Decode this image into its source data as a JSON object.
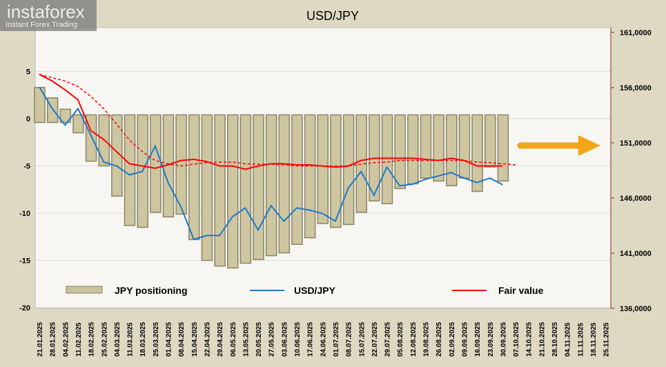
{
  "chart_data": {
    "type": "bar+line",
    "title": "USD/JPY",
    "left_axis": {
      "ticks": [
        5,
        0,
        -5,
        -10,
        -15,
        -20
      ],
      "range": [
        -20,
        5
      ]
    },
    "right_axis": {
      "ticks": [
        "161,0000",
        "156,0000",
        "151,0000",
        "146,0000",
        "141,0000",
        "136,0000"
      ],
      "range": [
        136000,
        161000
      ]
    },
    "x_labels": [
      "21.01.2025",
      "28.01.2025",
      "04.02.2025",
      "11.02.2025",
      "18.02.2025",
      "25.02.2025",
      "04.03.2025",
      "11.03.2025",
      "18.03.2025",
      "25.03.2025",
      "01.04.2025",
      "08.04.2025",
      "15.04.2025",
      "22.04.2025",
      "29.04.2025",
      "06.05.2025",
      "13.05.2025",
      "20.05.2025",
      "27.05.2025",
      "03.06.2025",
      "10.06.2025",
      "17.06.2025",
      "24.06.2025",
      "01.07.2025",
      "08.07.2025",
      "15.07.2025",
      "22.07.2025",
      "29.07.2025",
      "05.08.2025",
      "12.08.2025",
      "19.08.2025",
      "26.08.2025",
      "02.09.2025",
      "09.09.2025",
      "16.09.2025",
      "23.09.2025",
      "30.09.2025",
      "07.10.2025",
      "14.10.2025",
      "21.10.2025",
      "28.10.2025",
      "04.11.2025",
      "11.11.2025",
      "18.11.2025",
      "25.11.2025"
    ],
    "series": [
      {
        "name": "JPY positioning",
        "axis": "left",
        "kind": "bar",
        "values": [
          3.3,
          2.2,
          1.0,
          -1.5,
          -4.5,
          -5.0,
          -8.2,
          -11.3,
          -11.5,
          -9.9,
          -10.4,
          -10.1,
          -12.8,
          -15.0,
          -15.6,
          -15.8,
          -15.3,
          -14.9,
          -14.5,
          -14.2,
          -13.3,
          -12.6,
          -11.1,
          -11.5,
          -11.2,
          -9.9,
          -8.7,
          -9.0,
          -7.4,
          -6.9,
          -6.3,
          -6.6,
          -7.1,
          -6.3,
          -7.7,
          -5.1,
          -6.6
        ]
      },
      {
        "name": "USD/JPY",
        "axis": "right",
        "kind": "line",
        "color": "#1f78c8",
        "values": [
          156.06,
          154.1,
          152.6,
          154.1,
          151.7,
          149.25,
          148.9,
          148.1,
          148.4,
          150.7,
          147.4,
          145.2,
          142.25,
          142.6,
          142.6,
          144.3,
          145.1,
          143.1,
          145.3,
          143.9,
          145.1,
          144.9,
          144.6,
          143.9,
          146.9,
          148.4,
          146.25,
          148.8,
          147.1,
          147.25,
          147.7,
          148.0,
          148.3,
          147.8,
          147.4,
          147.8,
          147.2
        ]
      },
      {
        "name": "Fair value",
        "axis": "right",
        "kind": "line",
        "color": "#ff0000",
        "values": [
          157.2,
          156.6,
          155.8,
          154.9,
          152.1,
          151.3,
          150.2,
          149.1,
          148.9,
          148.7,
          149.0,
          149.4,
          149.5,
          149.3,
          148.9,
          148.9,
          148.6,
          148.9,
          149.1,
          149.1,
          149.0,
          149.0,
          148.9,
          148.8,
          148.9,
          149.4,
          149.6,
          149.6,
          149.6,
          149.6,
          149.5,
          149.4,
          149.6,
          149.4,
          148.9,
          148.9,
          148.9
        ]
      },
      {
        "name": "Fair value trend",
        "axis": "right",
        "kind": "dashed",
        "color": "#ff0000",
        "values": [
          157.2,
          156.9,
          156.6,
          156.1,
          155.2,
          154.1,
          152.7,
          151.25,
          150.2,
          149.4,
          149.1,
          148.9,
          149.06,
          149.2,
          149.25,
          149.25,
          149.1,
          149.06,
          149.06,
          149.0,
          148.9,
          148.9,
          148.9,
          148.9,
          148.9,
          149.06,
          149.2,
          149.25,
          149.4,
          149.4,
          149.4,
          149.4,
          149.4,
          149.4,
          149.25,
          149.2,
          149.1,
          149.0
        ]
      }
    ],
    "legend": {
      "position": "bottom-inside",
      "items": [
        "JPY positioning",
        "USD/JPY",
        "Fair value"
      ]
    },
    "annotation": "orange arrow pointing right",
    "grid": true
  },
  "logo": {
    "name": "instaforex",
    "tagline": "Instant Forex Trading"
  }
}
